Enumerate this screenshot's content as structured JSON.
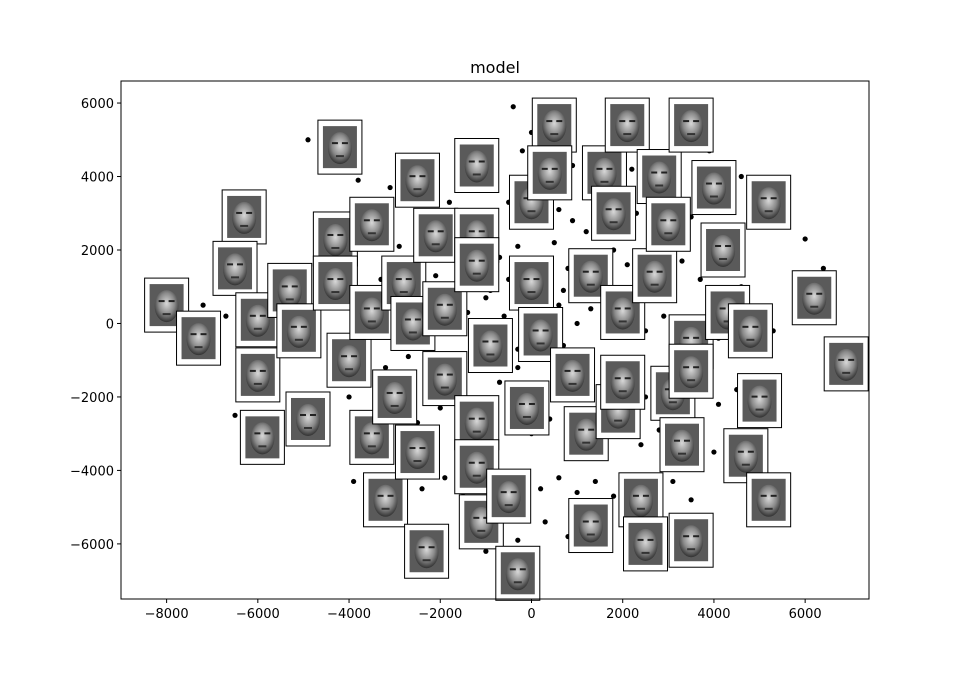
{
  "chart_data": {
    "type": "scatter",
    "title": "model",
    "xlabel": "",
    "ylabel": "",
    "xlim": [
      -9000,
      7400
    ],
    "ylim": [
      -7500,
      6600
    ],
    "xticks": [
      -8000,
      -6000,
      -4000,
      -2000,
      0,
      2000,
      4000,
      6000
    ],
    "xtick_labels": [
      "−8000",
      "−6000",
      "−4000",
      "−2000",
      "0",
      "2000",
      "4000",
      "6000"
    ],
    "yticks": [
      -6000,
      -4000,
      -2000,
      0,
      2000,
      4000,
      6000
    ],
    "ytick_labels": [
      "−6000",
      "−4000",
      "−2000",
      "0",
      "2000",
      "4000",
      "6000"
    ],
    "grid": false,
    "point_color": "#000000",
    "thumbnail_frame_color": "#000000",
    "thumbnail_icon": "face-thumbnail",
    "points": [
      [
        -4900,
        5000
      ],
      [
        -3100,
        3700
      ],
      [
        -2500,
        3000
      ],
      [
        -1800,
        3300
      ],
      [
        -1400,
        3000
      ],
      [
        -900,
        3700
      ],
      [
        -500,
        3300
      ],
      [
        -200,
        2900
      ],
      [
        300,
        3400
      ],
      [
        600,
        3100
      ],
      [
        900,
        2800
      ],
      [
        1200,
        2500
      ],
      [
        1500,
        3300
      ],
      [
        1800,
        2800
      ],
      [
        2300,
        3000
      ],
      [
        2600,
        2600
      ],
      [
        3100,
        2300
      ],
      [
        3500,
        2900
      ],
      [
        -3800,
        2800
      ],
      [
        -3400,
        2400
      ],
      [
        -2900,
        2100
      ],
      [
        -2400,
        2500
      ],
      [
        -2000,
        2200
      ],
      [
        -1600,
        1900
      ],
      [
        -1100,
        2300
      ],
      [
        -700,
        1800
      ],
      [
        -300,
        2100
      ],
      [
        100,
        1700
      ],
      [
        500,
        2200
      ],
      [
        800,
        1500
      ],
      [
        1100,
        1900
      ],
      [
        1400,
        1500
      ],
      [
        1800,
        2000
      ],
      [
        2100,
        1600
      ],
      [
        2500,
        1800
      ],
      [
        2900,
        1300
      ],
      [
        3300,
        1700
      ],
      [
        3700,
        1200
      ],
      [
        4100,
        1500
      ],
      [
        4600,
        1000
      ],
      [
        -5600,
        900
      ],
      [
        -5200,
        1200
      ],
      [
        -4700,
        700
      ],
      [
        -4300,
        1000
      ],
      [
        -3900,
        500
      ],
      [
        -3400,
        800
      ],
      [
        -3000,
        300
      ],
      [
        -2600,
        700
      ],
      [
        -2200,
        200
      ],
      [
        -1800,
        600
      ],
      [
        -1400,
        300
      ],
      [
        -1000,
        700
      ],
      [
        -600,
        200
      ],
      [
        -200,
        500
      ],
      [
        200,
        100
      ],
      [
        600,
        500
      ],
      [
        1000,
        0
      ],
      [
        1300,
        400
      ],
      [
        1700,
        -100
      ],
      [
        2100,
        300
      ],
      [
        2500,
        -200
      ],
      [
        2900,
        200
      ],
      [
        3300,
        -300
      ],
      [
        3700,
        100
      ],
      [
        4100,
        -400
      ],
      [
        4500,
        -100
      ],
      [
        4900,
        -500
      ],
      [
        5300,
        -200
      ],
      [
        -7200,
        500
      ],
      [
        -6700,
        200
      ],
      [
        -6200,
        -200
      ],
      [
        -5700,
        -500
      ],
      [
        -5200,
        -800
      ],
      [
        -4700,
        -500
      ],
      [
        -4200,
        -1000
      ],
      [
        -3700,
        -700
      ],
      [
        -3200,
        -1200
      ],
      [
        -2700,
        -900
      ],
      [
        -2300,
        -1400
      ],
      [
        -1900,
        -1000
      ],
      [
        -1500,
        -1500
      ],
      [
        -1100,
        -1100
      ],
      [
        -700,
        -1600
      ],
      [
        -300,
        -1200
      ],
      [
        100,
        -1700
      ],
      [
        500,
        -1300
      ],
      [
        900,
        -1800
      ],
      [
        1300,
        -1400
      ],
      [
        1700,
        -1900
      ],
      [
        2100,
        -1500
      ],
      [
        2500,
        -2000
      ],
      [
        2900,
        -1600
      ],
      [
        3300,
        -2100
      ],
      [
        3700,
        -1700
      ],
      [
        4100,
        -2200
      ],
      [
        4500,
        -1800
      ],
      [
        -4500,
        -2400
      ],
      [
        -4000,
        -2000
      ],
      [
        -3500,
        -2600
      ],
      [
        -3000,
        -2200
      ],
      [
        -2500,
        -2700
      ],
      [
        -2000,
        -2300
      ],
      [
        -1600,
        -2800
      ],
      [
        -1200,
        -2400
      ],
      [
        -800,
        -2900
      ],
      [
        -400,
        -2500
      ],
      [
        0,
        -3000
      ],
      [
        400,
        -2600
      ],
      [
        800,
        -3100
      ],
      [
        1200,
        -2700
      ],
      [
        1600,
        -3200
      ],
      [
        2000,
        -2800
      ],
      [
        2400,
        -3300
      ],
      [
        2800,
        -2900
      ],
      [
        3200,
        -3400
      ],
      [
        3600,
        -3000
      ],
      [
        4000,
        -3500
      ],
      [
        4500,
        -3100
      ],
      [
        -3900,
        -4300
      ],
      [
        -3500,
        -4700
      ],
      [
        -2900,
        -4100
      ],
      [
        -2400,
        -4500
      ],
      [
        -1900,
        -4200
      ],
      [
        -1500,
        -4700
      ],
      [
        -1000,
        -4300
      ],
      [
        -600,
        -4600
      ],
      [
        -200,
        -4100
      ],
      [
        200,
        -4500
      ],
      [
        600,
        -4200
      ],
      [
        1000,
        -4600
      ],
      [
        1400,
        -4300
      ],
      [
        1800,
        -4700
      ],
      [
        2200,
        -4200
      ],
      [
        2700,
        -4600
      ],
      [
        3100,
        -4300
      ],
      [
        3500,
        -4800
      ],
      [
        -1400,
        -5300
      ],
      [
        -800,
        -5600
      ],
      [
        -300,
        -5900
      ],
      [
        300,
        -5400
      ],
      [
        800,
        -5800
      ],
      [
        1300,
        -5500
      ],
      [
        1600,
        -6000
      ],
      [
        -1000,
        -6200
      ],
      [
        4800,
        -4800
      ],
      [
        5100,
        -5300
      ],
      [
        -1500,
        4800
      ],
      [
        -800,
        4400
      ],
      [
        -200,
        4700
      ],
      [
        900,
        4300
      ],
      [
        1500,
        4600
      ],
      [
        2200,
        4200
      ],
      [
        2800,
        4500
      ],
      [
        3900,
        4700
      ],
      [
        4600,
        4000
      ],
      [
        5100,
        3600
      ],
      [
        5500,
        3100
      ],
      [
        6000,
        2300
      ],
      [
        6400,
        1500
      ],
      [
        7000,
        -800
      ],
      [
        -4300,
        4200
      ],
      [
        -3800,
        3900
      ],
      [
        -2200,
        4000
      ],
      [
        -400,
        5900
      ],
      [
        0,
        5200
      ],
      [
        400,
        4600
      ],
      [
        -6500,
        -2500
      ],
      [
        -5800,
        -1600
      ],
      [
        -8100,
        300
      ],
      [
        -7500,
        -300
      ],
      [
        -600,
        -300
      ],
      [
        -300,
        -700
      ],
      [
        100,
        -400
      ],
      [
        400,
        -900
      ],
      [
        700,
        -600
      ],
      [
        1100,
        -1000
      ],
      [
        -900,
        900
      ],
      [
        -500,
        1200
      ],
      [
        -100,
        800
      ],
      [
        300,
        1100
      ],
      [
        700,
        900
      ],
      [
        1100,
        1300
      ],
      [
        -1300,
        1300
      ],
      [
        -1700,
        1000
      ],
      [
        -2100,
        1300
      ],
      [
        -2500,
        1000
      ],
      [
        -2900,
        1500
      ],
      [
        -3300,
        1200
      ]
    ],
    "thumbnails": [
      [
        -8000,
        500
      ],
      [
        -7300,
        -400
      ],
      [
        -6300,
        2900
      ],
      [
        -6500,
        1500
      ],
      [
        -6000,
        100
      ],
      [
        -6000,
        -1400
      ],
      [
        -5900,
        -3100
      ],
      [
        -5300,
        900
      ],
      [
        -5100,
        -200
      ],
      [
        -4900,
        -2600
      ],
      [
        -4300,
        2300
      ],
      [
        -4300,
        1100
      ],
      [
        -4200,
        4800
      ],
      [
        -4000,
        -1000
      ],
      [
        -3500,
        2700
      ],
      [
        -3500,
        300
      ],
      [
        -3500,
        -3100
      ],
      [
        -3200,
        -4800
      ],
      [
        -2800,
        1100
      ],
      [
        -3000,
        -2000
      ],
      [
        -2500,
        3900
      ],
      [
        -2600,
        0
      ],
      [
        -2500,
        -3500
      ],
      [
        -2300,
        -6200
      ],
      [
        -2100,
        2400
      ],
      [
        -1900,
        -1500
      ],
      [
        -1900,
        400
      ],
      [
        -1200,
        4300
      ],
      [
        -1200,
        2400
      ],
      [
        -1200,
        1600
      ],
      [
        -1200,
        -2700
      ],
      [
        -1200,
        -3900
      ],
      [
        -1100,
        -5400
      ],
      [
        -900,
        -600
      ],
      [
        -500,
        -4700
      ],
      [
        -300,
        -6800
      ],
      [
        -100,
        -2300
      ],
      [
        0,
        3300
      ],
      [
        0,
        1100
      ],
      [
        200,
        -300
      ],
      [
        500,
        5400
      ],
      [
        400,
        4100
      ],
      [
        900,
        -1400
      ],
      [
        1200,
        -3000
      ],
      [
        1300,
        -5500
      ],
      [
        1300,
        1300
      ],
      [
        1600,
        4100
      ],
      [
        1800,
        3000
      ],
      [
        1900,
        -2400
      ],
      [
        2000,
        -1600
      ],
      [
        2000,
        300
      ],
      [
        2100,
        5400
      ],
      [
        2400,
        -4800
      ],
      [
        2500,
        -6000
      ],
      [
        2700,
        1300
      ],
      [
        2800,
        4000
      ],
      [
        3100,
        -1900
      ],
      [
        3000,
        2700
      ],
      [
        3300,
        -3300
      ],
      [
        3500,
        -5900
      ],
      [
        3500,
        -500
      ],
      [
        3500,
        5400
      ],
      [
        3500,
        -1300
      ],
      [
        4000,
        3700
      ],
      [
        4200,
        2000
      ],
      [
        4300,
        300
      ],
      [
        4700,
        -3600
      ],
      [
        4800,
        -200
      ],
      [
        5000,
        -2100
      ],
      [
        5200,
        3300
      ],
      [
        5200,
        -4800
      ],
      [
        6200,
        700
      ],
      [
        6900,
        -1100
      ]
    ]
  }
}
